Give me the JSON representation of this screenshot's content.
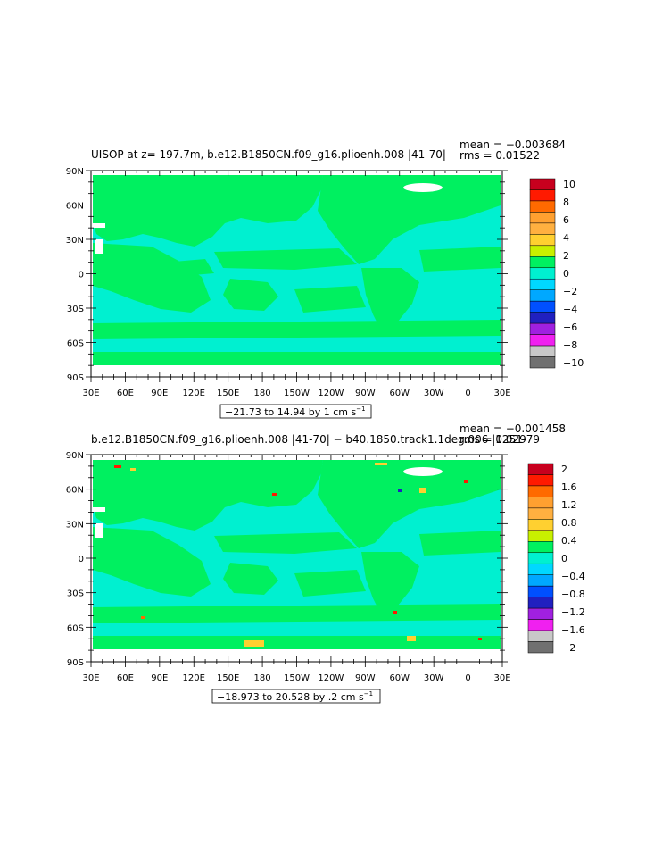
{
  "chart_data": [
    {
      "type": "heatmap",
      "title": "UISOP at z= 197.7m, b.e12.B1850CN.f09_g16.plioenh.008 |41-70|",
      "stats": {
        "mean": "mean = −0.003684",
        "rms": "rms = 0.01522"
      },
      "x_ticks": [
        "30E",
        "60E",
        "90E",
        "120E",
        "150E",
        "180",
        "150W",
        "120W",
        "90W",
        "60W",
        "30W",
        "0",
        "30E"
      ],
      "y_ticks": [
        "90N",
        "60N",
        "30N",
        "0",
        "30S",
        "60S",
        "90S"
      ],
      "range_label": "−21.73 to 14.94 by 1 cm s",
      "range_unit_sup": "−1",
      "colorbar": {
        "labels": [
          "10",
          "8",
          "6",
          "4",
          "2",
          "0",
          "−2",
          "−4",
          "−6",
          "−8",
          "−10"
        ],
        "colors": [
          "#c8001e",
          "#ff1a00",
          "#ff6a00",
          "#ffa030",
          "#ffb040",
          "#ffd030",
          "#c8f000",
          "#00f060",
          "#00f0d0",
          "#00d8ff",
          "#00a8ff",
          "#0050ff",
          "#2020c0",
          "#a020e0",
          "#f020f0",
          "#c8c8c8",
          "#707070"
        ]
      }
    },
    {
      "type": "heatmap",
      "title": "b.e12.B1850CN.f09_g16.plioenh.008 |41-70| − b40.1850.track1.1deg.006 |1251-",
      "stats": {
        "mean": "mean = −0.001458",
        "rms": "rms = 0.02979"
      },
      "x_ticks": [
        "30E",
        "60E",
        "90E",
        "120E",
        "150E",
        "180",
        "150W",
        "120W",
        "90W",
        "60W",
        "30W",
        "0",
        "30E"
      ],
      "y_ticks": [
        "90N",
        "60N",
        "30N",
        "0",
        "30S",
        "60S",
        "90S"
      ],
      "range_label": "−18.973 to 20.528 by .2 cm s",
      "range_unit_sup": "−1",
      "colorbar": {
        "labels": [
          "2",
          "1.6",
          "1.2",
          "0.8",
          "0.4",
          "0",
          "−0.4",
          "−0.8",
          "−1.2",
          "−1.6",
          "−2"
        ],
        "colors": [
          "#c8001e",
          "#ff1a00",
          "#ff6a00",
          "#ffa030",
          "#ffb040",
          "#ffd030",
          "#c8f000",
          "#00f060",
          "#00f0d0",
          "#00d8ff",
          "#00a8ff",
          "#0050ff",
          "#2020c0",
          "#a020e0",
          "#f020f0",
          "#c8c8c8",
          "#707070"
        ]
      }
    }
  ],
  "colors": {
    "land": "#00f060",
    "ocean_neg": "#00f0d0",
    "missing": "#ffffff"
  }
}
